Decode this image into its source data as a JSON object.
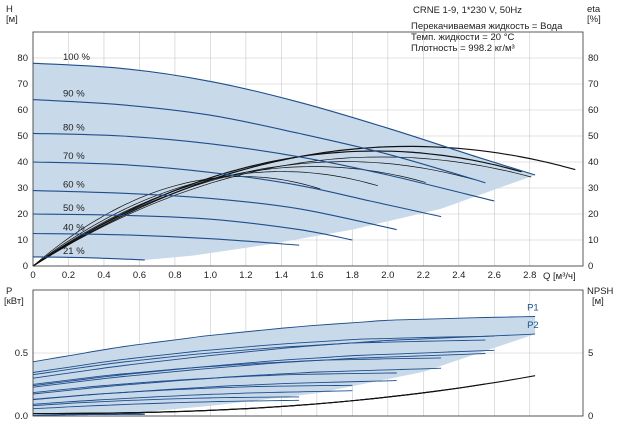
{
  "info": {
    "title": "CRNE 1-9, 1*230 V, 50Hz",
    "liquid": "Перекачиваемая жидкость = Вода",
    "temperature": "Темп. жидкости = 20 °C",
    "density": "Плотность = 998.2 кг/м³"
  },
  "colors": {
    "envelope": "#c8d9ea",
    "curve": "#1f4e8c",
    "eta": "#111111",
    "grid": "#c8c8c8"
  },
  "chart_data": [
    {
      "type": "line",
      "title": "",
      "y_label_left": "H",
      "y_unit_left": "[м]",
      "y_label_right": "eta",
      "y_unit_right": "[%]",
      "x_label": "Q [м³/ч]",
      "xlim": [
        0,
        3.1
      ],
      "ylim": [
        0,
        90
      ],
      "x_ticks": [
        "0",
        "0.2",
        "0.4",
        "0.6",
        "0.8",
        "1.0",
        "1.2",
        "1.4",
        "1.6",
        "1.8",
        "2.0",
        "2.2",
        "2.4",
        "2.6",
        "2.8"
      ],
      "y_ticks": [
        "0",
        "10",
        "20",
        "30",
        "40",
        "50",
        "60",
        "70",
        "80"
      ],
      "grid": true,
      "series": [
        {
          "name": "100 %",
          "x": [
            0,
            0.5,
            1.0,
            1.5,
            2.0,
            2.5,
            2.83
          ],
          "y": [
            78,
            76,
            71,
            63,
            53,
            42,
            35
          ]
        },
        {
          "name": "90 %",
          "x": [
            0,
            0.5,
            1.0,
            1.5,
            2.0,
            2.55
          ],
          "y": [
            64,
            62,
            58,
            51,
            43,
            32
          ]
        },
        {
          "name": "80 %",
          "x": [
            0,
            0.5,
            1.0,
            1.5,
            2.0,
            2.6
          ],
          "y": [
            51,
            50,
            47,
            42,
            35,
            25
          ]
        },
        {
          "name": "70 %",
          "x": [
            0,
            0.5,
            1.0,
            1.5,
            1.9,
            2.3
          ],
          "y": [
            40,
            39,
            36,
            31,
            25,
            19
          ]
        },
        {
          "name": "60 %",
          "x": [
            0,
            0.5,
            1.0,
            1.5,
            2.05
          ],
          "y": [
            29,
            28,
            26,
            22,
            14
          ]
        },
        {
          "name": "50 %",
          "x": [
            0,
            0.5,
            1.0,
            1.5,
            1.8
          ],
          "y": [
            20,
            19.5,
            18,
            14,
            10
          ]
        },
        {
          "name": "40 %",
          "x": [
            0,
            0.5,
            1.0,
            1.5
          ],
          "y": [
            12.5,
            12,
            10.5,
            8
          ]
        },
        {
          "name": "21 %",
          "x": [
            0,
            0.3,
            0.63
          ],
          "y": [
            3.5,
            3.2,
            2.3
          ]
        }
      ]
    },
    {
      "type": "line",
      "title": "",
      "y_label_left": "P",
      "y_unit_left": "[кВт]",
      "y_label_right": "NPSH",
      "y_unit_right": "[м]",
      "xlim": [
        0,
        3.1
      ],
      "ylim": [
        0,
        1.0
      ],
      "y_ticks": [
        "0.0",
        "0.5"
      ],
      "y_ticks_right": [
        "0",
        "5"
      ],
      "grid": true,
      "series": [
        {
          "name": "P1",
          "x": [
            0,
            0.5,
            1.0,
            1.5,
            2.0,
            2.5,
            2.83
          ],
          "y": [
            0.43,
            0.55,
            0.64,
            0.71,
            0.76,
            0.78,
            0.79
          ]
        },
        {
          "name": "P2",
          "x": [
            0,
            0.5,
            1.0,
            1.5,
            2.0,
            2.5,
            2.83
          ],
          "y": [
            0.3,
            0.4,
            0.48,
            0.55,
            0.6,
            0.63,
            0.65
          ]
        }
      ]
    }
  ]
}
